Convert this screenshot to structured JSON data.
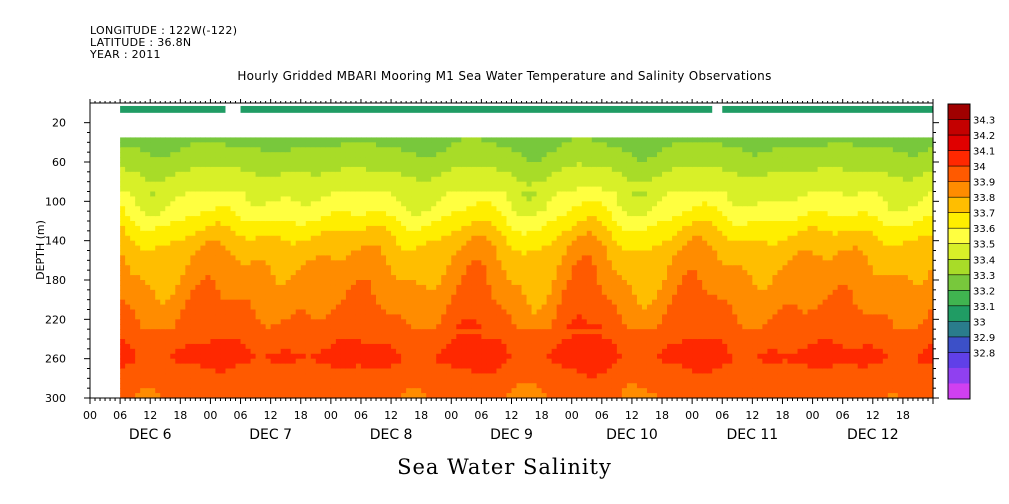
{
  "header": {
    "longitude": "LONGITUDE : 122W(-122)",
    "latitude": "LATITUDE : 36.8N",
    "year": "YEAR : 2011"
  },
  "chart_data": {
    "type": "heatmap",
    "title": "Hourly Gridded MBARI Mooring M1 Sea Water Temperature and Salinity Observations",
    "xlabel": "Sea Water Salinity",
    "ylabel": "DEPTH (m)",
    "x_range_hours": [
      0,
      168
    ],
    "y_range_m": [
      300,
      0
    ],
    "y_ticks": [
      20,
      60,
      100,
      140,
      180,
      220,
      260,
      300
    ],
    "y_tick_labels": [
      "20",
      "60",
      "100",
      "140",
      "180",
      "220",
      "260",
      "300"
    ],
    "x_tick_hours": [
      "00",
      "06",
      "12",
      "18",
      "00",
      "06",
      "12",
      "18",
      "00",
      "06",
      "12",
      "18",
      "00",
      "06",
      "12",
      "18",
      "00",
      "06",
      "12",
      "18",
      "00",
      "06",
      "12",
      "18",
      "00",
      "06",
      "12",
      "18"
    ],
    "day_labels": [
      "DEC 6",
      "DEC 7",
      "DEC 8",
      "DEC 9",
      "DEC 10",
      "DEC 11",
      "DEC 12"
    ],
    "colorbar": {
      "levels": [
        34.3,
        34.2,
        34.1,
        34,
        33.9,
        33.8,
        33.7,
        33.6,
        33.5,
        33.4,
        33.3,
        33.2,
        33.1,
        33,
        32.9,
        32.8
      ],
      "level_labels": [
        "34.3",
        "34.2",
        "34.1",
        "34",
        "33.9",
        "33.8",
        "33.7",
        "33.6",
        "33.5",
        "33.4",
        "33.3",
        "33.2",
        "33.1",
        "33",
        "32.9",
        "32.8"
      ],
      "colors": [
        "#a00000",
        "#c40000",
        "#e00000",
        "#ff2800",
        "#ff5a00",
        "#ff8c00",
        "#ffbe00",
        "#ffee00",
        "#ffff40",
        "#d8f028",
        "#a8dc28",
        "#78c83c",
        "#40b450",
        "#209c64",
        "#2a7c8c",
        "#3c50c8",
        "#6040e8",
        "#9040f0",
        "#d040f0"
      ]
    },
    "surface_bins": [
      {
        "start_hour": 6,
        "end_hour": 27,
        "value": 33.25
      },
      {
        "start_hour": 30,
        "end_hour": 124,
        "value": 33.25
      },
      {
        "start_hour": 126,
        "end_hour": 200,
        "value": 33.25
      }
    ],
    "profile_depth_m": [
      35,
      40,
      50,
      60,
      70,
      80,
      90,
      100,
      110,
      120,
      130,
      140,
      150,
      160,
      170,
      180,
      190,
      200,
      210,
      220,
      230,
      240,
      250,
      260,
      270,
      280,
      290,
      300
    ],
    "base_profile": [
      33.45,
      33.48,
      33.52,
      33.55,
      33.6,
      33.64,
      33.68,
      33.72,
      33.76,
      33.82,
      33.88,
      33.93,
      33.97,
      34.0,
      34.02,
      34.04,
      34.06,
      34.08,
      34.1,
      34.12,
      34.15,
      34.18,
      34.2,
      34.22,
      34.18,
      34.15,
      34.13,
      34.12
    ]
  }
}
